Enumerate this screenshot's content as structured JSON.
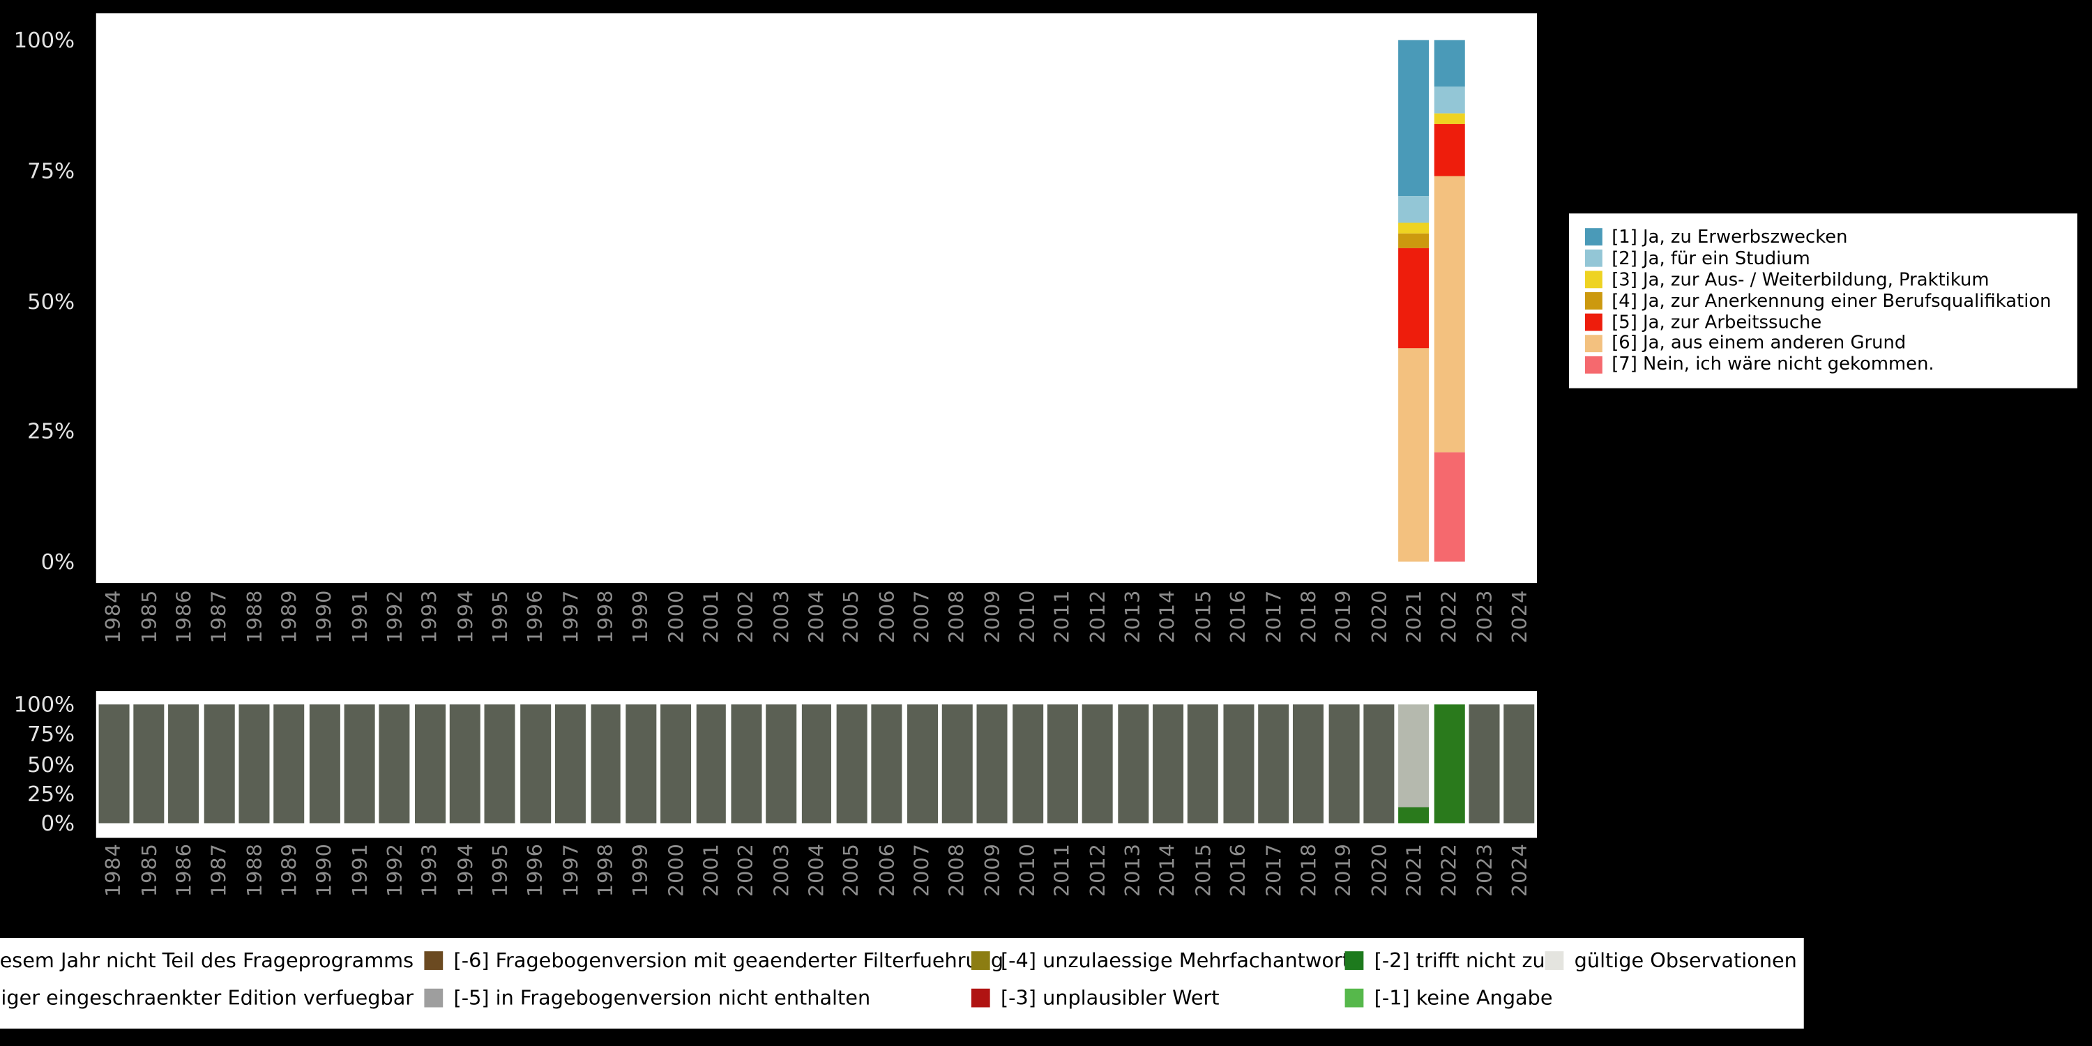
{
  "colors": {
    "background": "#000000",
    "panel": "#ffffff",
    "x_tick_label": "#8d8d8d",
    "y_tick_label": "#e3e3e3"
  },
  "chart_data": [
    {
      "type": "bar",
      "stacked": true,
      "unit": "percent",
      "title": "",
      "ylim": [
        0,
        100
      ],
      "yticks_top_to_bottom": [
        "100%",
        "75%",
        "50%",
        "25%",
        "0%"
      ],
      "legend_position": "right",
      "x": [
        "1984",
        "1985",
        "1986",
        "1987",
        "1988",
        "1989",
        "1990",
        "1991",
        "1992",
        "1993",
        "1994",
        "1995",
        "1996",
        "1997",
        "1998",
        "1999",
        "2000",
        "2001",
        "2002",
        "2003",
        "2004",
        "2005",
        "2006",
        "2007",
        "2008",
        "2009",
        "2010",
        "2011",
        "2012",
        "2013",
        "2014",
        "2015",
        "2016",
        "2017",
        "2018",
        "2019",
        "2020",
        "2021",
        "2022",
        "2023",
        "2024"
      ],
      "legend_order": [
        "1",
        "2",
        "3",
        "4",
        "5",
        "6",
        "7"
      ],
      "categories": {
        "1": {
          "label": "[1] Ja, zu Erwerbszwecken",
          "color": "#4a9ab8"
        },
        "2": {
          "label": "[2] Ja, für ein Studium",
          "color": "#93c6d6"
        },
        "3": {
          "label": "[3] Ja, zur Aus- / Weiterbildung, Praktikum",
          "color": "#eed322"
        },
        "4": {
          "label": "[4] Ja, zur Anerkennung einer Berufsqualifikation",
          "color": "#cc990f"
        },
        "5": {
          "label": "[5] Ja, zur Arbeitssuche",
          "color": "#ee1d0c"
        },
        "6": {
          "label": "[6] Ja, aus einem anderen Grund",
          "color": "#f3c17f"
        },
        "7": {
          "label": "[7] Nein, ich wäre nicht gekommen.",
          "color": "#f5696e"
        }
      },
      "default_stack": [],
      "bars": {
        "2021": [
          [
            "1",
            30
          ],
          [
            "2",
            5
          ],
          [
            "3",
            2
          ],
          [
            "4",
            3
          ],
          [
            "5",
            19
          ],
          [
            "6",
            41
          ]
        ],
        "2022": [
          [
            "1",
            9
          ],
          [
            "2",
            5
          ],
          [
            "3",
            2
          ],
          [
            "5",
            10
          ],
          [
            "6",
            53
          ],
          [
            "7",
            21
          ]
        ]
      }
    },
    {
      "type": "bar",
      "stacked": true,
      "unit": "percent",
      "title": "",
      "ylim": [
        0,
        100
      ],
      "yticks_top_to_bottom": [
        "100%",
        "75%",
        "50%",
        "25%",
        "0%"
      ],
      "x": [
        "1984",
        "1985",
        "1986",
        "1987",
        "1988",
        "1989",
        "1990",
        "1991",
        "1992",
        "1993",
        "1994",
        "1995",
        "1996",
        "1997",
        "1998",
        "1999",
        "2000",
        "2001",
        "2002",
        "2003",
        "2004",
        "2005",
        "2006",
        "2007",
        "2008",
        "2009",
        "2010",
        "2011",
        "2012",
        "2013",
        "2014",
        "2015",
        "2016",
        "2017",
        "2018",
        "2019",
        "2020",
        "2021",
        "2022",
        "2023",
        "2024"
      ],
      "categories": {
        "notinprogram": {
          "label": "in diesem Jahr nicht Teil des Frageprogramms",
          "color": "#5b6054"
        },
        "edition": {
          "label": "weniger eingeschraenkter Edition verfuegbar",
          "color": "#b5b9ae"
        },
        "tnz": {
          "label": "[-2] trifft nicht zu",
          "color": "#2a7a1c"
        }
      },
      "default_stack": [
        [
          "notinprogram",
          100
        ]
      ],
      "bars": {
        "2021": [
          [
            "edition",
            87
          ],
          [
            "tnz",
            13
          ]
        ],
        "2022": [
          [
            "tnz",
            100
          ]
        ]
      }
    }
  ],
  "missings_legend": {
    "column_lefts": [
      0,
      318,
      728,
      1008,
      1158
    ],
    "rows": [
      [
        {
          "label": "in diesem Jahr nicht Teil des Frageprogramms",
          "align": "right"
        },
        {
          "label": "[-6] Fragebogenversion mit geaenderter Filterfuehrung",
          "color": "#6b4a21"
        },
        {
          "label": "[-4] unzulaessige Mehrfachantwort",
          "color": "#8c7d12"
        },
        {
          "label": "[-2] trifft nicht zu",
          "color": "#1d7a1d"
        },
        {
          "label": "gültige Observationen",
          "color": "#e4e4df"
        }
      ],
      [
        {
          "label": "weniger eingeschraenkter Edition verfuegbar",
          "align": "right"
        },
        {
          "label": "[-5] in Fragebogenversion nicht enthalten",
          "color": "#9e9e9e"
        },
        {
          "label": "[-3] unplausibler Wert",
          "color": "#b01312"
        },
        {
          "label": "[-1] keine Angabe",
          "color": "#56b84b"
        },
        null
      ]
    ]
  }
}
